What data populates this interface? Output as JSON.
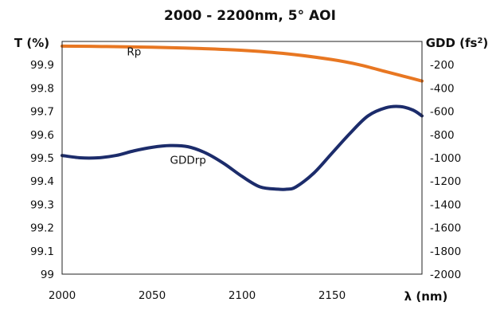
{
  "chart_data": {
    "type": "line",
    "title": "2000 - 2200nm, 5° AOI",
    "xlabel": "λ (nm)",
    "ylabel_left": "T (%)",
    "ylabel_right_base": "GDD (fs",
    "ylabel_right_sup": "2",
    "ylabel_right_end": ")",
    "xlim": [
      2000,
      2200
    ],
    "ylim_left": [
      99,
      100
    ],
    "ylim_right": [
      -2000,
      0
    ],
    "x_ticks": [
      2000,
      2050,
      2100,
      2150
    ],
    "y_left_ticks": [
      "99",
      "99.1",
      "99.2",
      "99.3",
      "99.4",
      "99.5",
      "99.6",
      "99.7",
      "99.8",
      "99.9"
    ],
    "y_left_values": [
      99,
      99.1,
      99.2,
      99.3,
      99.4,
      99.5,
      99.6,
      99.7,
      99.8,
      99.9
    ],
    "y_right_ticks": [
      "-200",
      "-400",
      "-600",
      "-800",
      "-1000",
      "-1200",
      "-1400",
      "-1600",
      "-1800",
      "-2000"
    ],
    "y_right_values": [
      -200,
      -400,
      -600,
      -800,
      -1000,
      -1200,
      -1400,
      -1600,
      -1800,
      -2000
    ],
    "grid": false,
    "series": [
      {
        "name": "Rp",
        "axis": "left",
        "color": "#E87722",
        "label_at": [
          2040,
          99.94
        ],
        "x": [
          2000,
          2025,
          2050,
          2075,
          2100,
          2125,
          2150,
          2165,
          2180,
          2190,
          2200
        ],
        "y": [
          99.98,
          99.978,
          99.975,
          99.97,
          99.962,
          99.947,
          99.922,
          99.9,
          99.87,
          99.85,
          99.83
        ]
      },
      {
        "name": "GDDrp",
        "axis": "right",
        "color": "#1C2C6B",
        "label_at": [
          2070,
          -1050
        ],
        "x": [
          2000,
          2010,
          2020,
          2030,
          2040,
          2050,
          2060,
          2070,
          2080,
          2090,
          2100,
          2110,
          2120,
          2125,
          2130,
          2140,
          2150,
          2160,
          2170,
          2180,
          2188,
          2195,
          2200
        ],
        "y": [
          -980,
          -1000,
          -1000,
          -980,
          -940,
          -910,
          -895,
          -905,
          -960,
          -1050,
          -1160,
          -1250,
          -1270,
          -1270,
          -1250,
          -1130,
          -960,
          -790,
          -640,
          -570,
          -560,
          -590,
          -640
        ]
      }
    ]
  }
}
